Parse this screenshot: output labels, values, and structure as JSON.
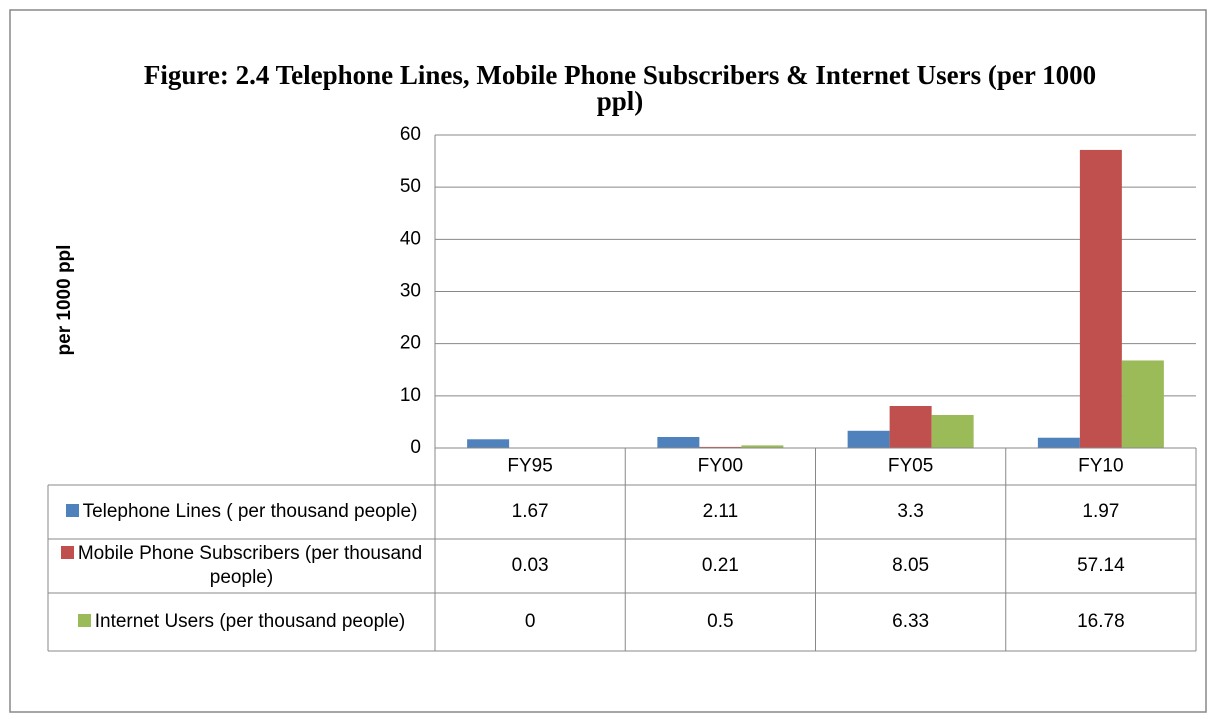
{
  "chart_data": {
    "type": "bar",
    "title": "Figure: 2.4 Telephone Lines, Mobile Phone Subscribers & Internet Users (per 1000 ppl)",
    "y_label": "per 1000 ppl",
    "categories": [
      "FY95",
      "FY00",
      "FY05",
      "FY10"
    ],
    "series": [
      {
        "name": "Telephone Lines ( per thousand people)",
        "color": "#4f81bd",
        "values": [
          1.67,
          2.11,
          3.3,
          1.97
        ]
      },
      {
        "name": "Mobile Phone Subscribers (per thousand people)",
        "color": "#c0504d",
        "values": [
          0.03,
          0.21,
          8.05,
          57.14
        ]
      },
      {
        "name": "Internet Users (per thousand people)",
        "color": "#9bbb59",
        "values": [
          0,
          0.5,
          6.33,
          16.78
        ]
      }
    ],
    "ylim": [
      0,
      60
    ],
    "yticks": [
      0,
      10,
      20,
      30,
      40,
      50,
      60
    ],
    "grid": true,
    "data_table": true
  }
}
